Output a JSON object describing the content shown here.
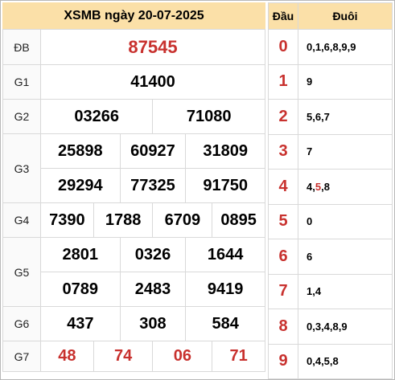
{
  "title": "XSMB ngày 20-07-2025",
  "labels": {
    "db": "ĐB",
    "g1": "G1",
    "g2": "G2",
    "g3": "G3",
    "g4": "G4",
    "g5": "G5",
    "g6": "G6",
    "g7": "G7"
  },
  "prizes": {
    "db": "87545",
    "g1": "41400",
    "g2": [
      "03266",
      "71080"
    ],
    "g3": [
      "25898",
      "60927",
      "31809",
      "29294",
      "77325",
      "91750"
    ],
    "g4": [
      "7390",
      "1788",
      "6709",
      "0895"
    ],
    "g5": [
      "2801",
      "0326",
      "1644",
      "0789",
      "2483",
      "9419"
    ],
    "g6": [
      "437",
      "308",
      "584"
    ],
    "g7": [
      "48",
      "74",
      "06",
      "71"
    ]
  },
  "loto": {
    "header_dau": "Đầu",
    "header_duoi": "Đuôi",
    "rows": [
      {
        "dau": "0",
        "duoi": "0,1,6,8,9,9"
      },
      {
        "dau": "1",
        "duoi": "9"
      },
      {
        "dau": "2",
        "duoi": "5,6,7"
      },
      {
        "dau": "3",
        "duoi": "7"
      },
      {
        "dau": "4",
        "duoi_pre": "4,",
        "duoi_hl": "5",
        "duoi_post": ",8"
      },
      {
        "dau": "5",
        "duoi": "0"
      },
      {
        "dau": "6",
        "duoi": "6"
      },
      {
        "dau": "7",
        "duoi": "1,4"
      },
      {
        "dau": "8",
        "duoi": "0,3,4,8,9"
      },
      {
        "dau": "9",
        "duoi": "0,4,5,8"
      }
    ]
  },
  "colors": {
    "accent_red": "#c8312e",
    "header_bg": "#fbe0a8"
  }
}
